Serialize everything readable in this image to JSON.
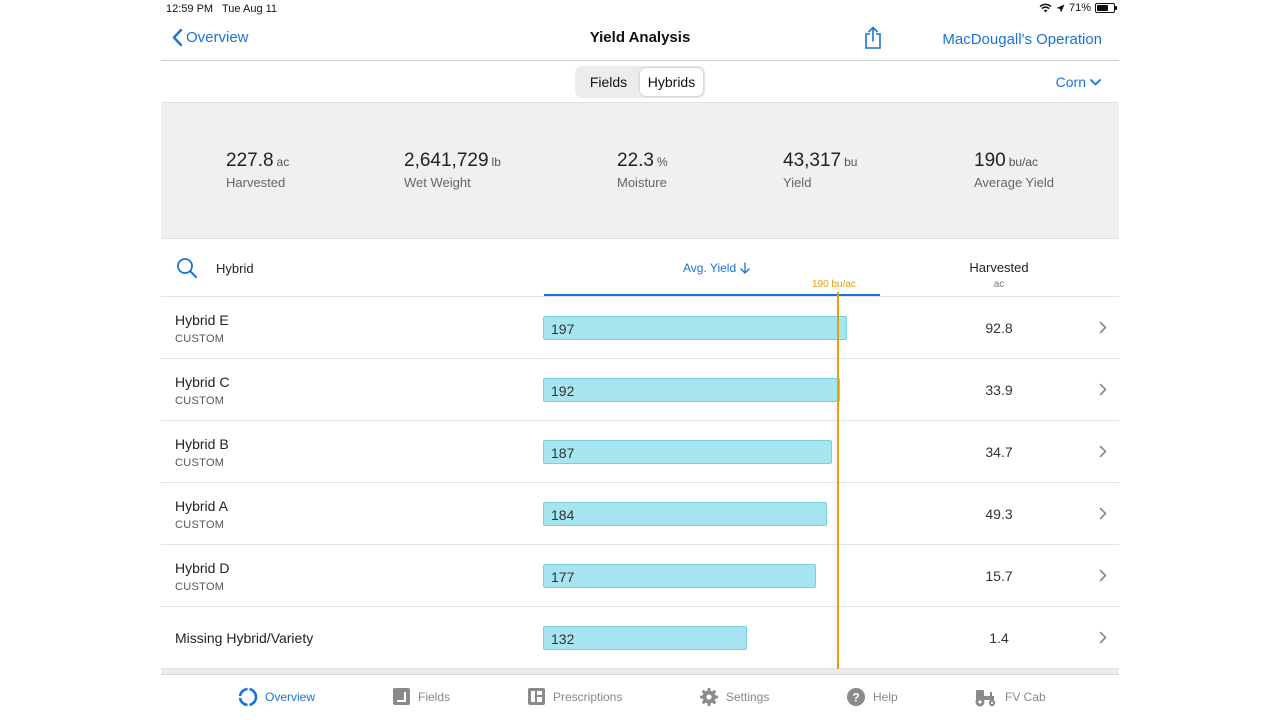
{
  "status": {
    "time": "12:59 PM",
    "date": "Tue Aug 11",
    "battery": "71%",
    "battery_level": 0.71
  },
  "nav": {
    "back_label": "Overview",
    "title": "Yield Analysis",
    "operation": "MacDougall's Operation"
  },
  "segments": [
    "Fields",
    "Hybrids"
  ],
  "segment_selected": "Hybrids",
  "crop": "Corn",
  "summary": [
    {
      "value": "227.8",
      "unit": "ac",
      "label": "Harvested"
    },
    {
      "value": "2,641,729",
      "unit": "lb",
      "label": "Wet Weight"
    },
    {
      "value": "22.3",
      "unit": "%",
      "label": "Moisture"
    },
    {
      "value": "43,317",
      "unit": "bu",
      "label": "Yield"
    },
    {
      "value": "190",
      "unit": "bu/ac",
      "label": "Average Yield"
    }
  ],
  "list_header": {
    "hybrid": "Hybrid",
    "avg_yield": "Avg. Yield",
    "avg_marker": "190 bu/ac",
    "harvested": "Harvested",
    "harvested_unit": "ac"
  },
  "average_yield": 190,
  "rows": [
    {
      "name": "Hybrid E",
      "sub": "CUSTOM",
      "yield": "197",
      "harvested": "92.8"
    },
    {
      "name": "Hybrid C",
      "sub": "CUSTOM",
      "yield": "192",
      "harvested": "33.9"
    },
    {
      "name": "Hybrid B",
      "sub": "CUSTOM",
      "yield": "187",
      "harvested": "34.7"
    },
    {
      "name": "Hybrid A",
      "sub": "CUSTOM",
      "yield": "184",
      "harvested": "49.3"
    },
    {
      "name": "Hybrid D",
      "sub": "CUSTOM",
      "yield": "177",
      "harvested": "15.7"
    },
    {
      "name": "Missing Hybrid/Variety",
      "sub": "",
      "yield": "132",
      "harvested": "1.4"
    }
  ],
  "tabs": [
    "Overview",
    "Fields",
    "Prescriptions",
    "Settings",
    "Help",
    "FV Cab"
  ],
  "colors": {
    "accent": "#1a73d9",
    "bar": "#a6e4ef",
    "average_line": "#e0a20a"
  }
}
